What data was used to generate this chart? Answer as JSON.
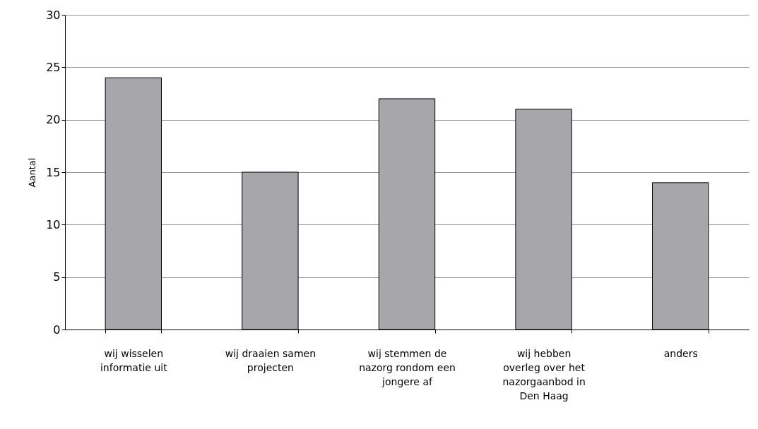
{
  "chart_data": {
    "type": "bar",
    "ylabel": "Aantal",
    "categories": [
      "wij wisselen informatie uit",
      "wij draaien samen projecten",
      "wij stemmen de nazorg rondom een jongere af",
      "wij hebben overleg over het nazorgaanbod in Den Haag",
      "anders"
    ],
    "values": [
      24,
      15,
      22,
      21,
      14
    ],
    "color": "#a6a6ab",
    "ylim": [
      0,
      30
    ],
    "yticks": [
      0,
      5,
      10,
      15,
      20,
      25,
      30
    ],
    "grid": "y"
  }
}
